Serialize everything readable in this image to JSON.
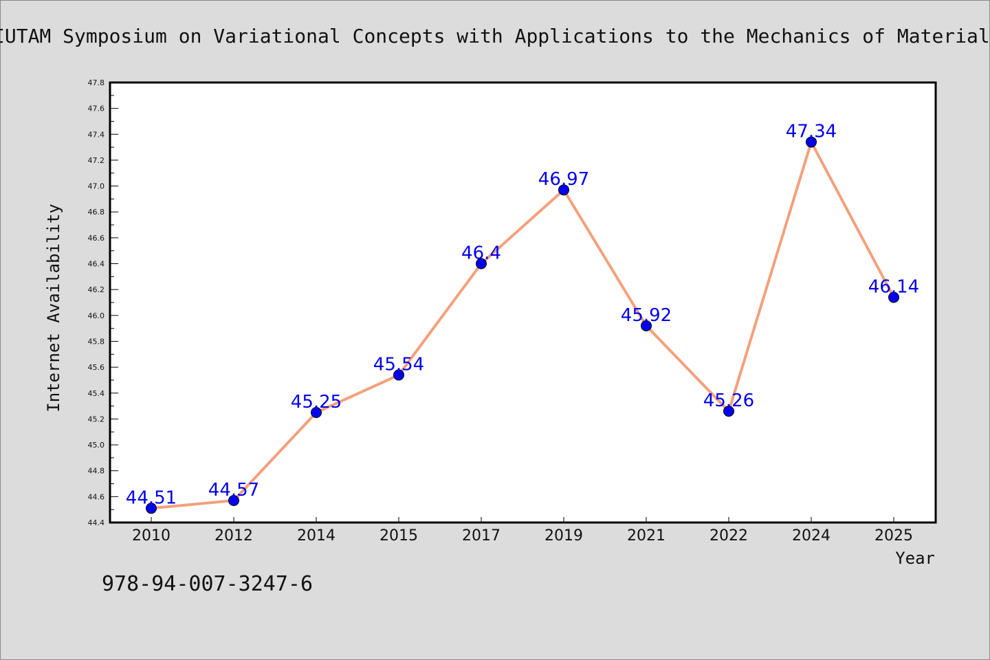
{
  "chart_data": {
    "type": "line",
    "title": "IUTAM Symposium on Variational Concepts with Applications to the Mechanics of Materials",
    "xlabel": "Year",
    "ylabel": "Internet Availability",
    "categories": [
      "2010",
      "2012",
      "2014",
      "2015",
      "2017",
      "2019",
      "2021",
      "2022",
      "2024",
      "2025"
    ],
    "values": [
      44.51,
      44.57,
      45.25,
      45.54,
      46.4,
      46.97,
      45.92,
      45.26,
      47.34,
      46.14
    ],
    "data_labels": [
      "44.51",
      "44.57",
      "45.25",
      "45.54",
      "46.4",
      "46.97",
      "45.92",
      "45.26",
      "47.34",
      "46.14"
    ],
    "ylim": [
      44.4,
      47.8
    ],
    "y_ticks": [
      "44.4",
      "44.6",
      "44.8",
      "45.0",
      "45.2",
      "45.4",
      "45.6",
      "45.8",
      "46.0",
      "46.2",
      "46.4",
      "46.6",
      "46.8",
      "47.0",
      "47.2",
      "47.4",
      "47.6",
      "47.8"
    ],
    "grid": false,
    "line_color": "#f4a07c",
    "marker_color": "#0000ee",
    "label_color": "#0000ee"
  },
  "footer": {
    "isbn": "978-94-007-3247-6"
  }
}
